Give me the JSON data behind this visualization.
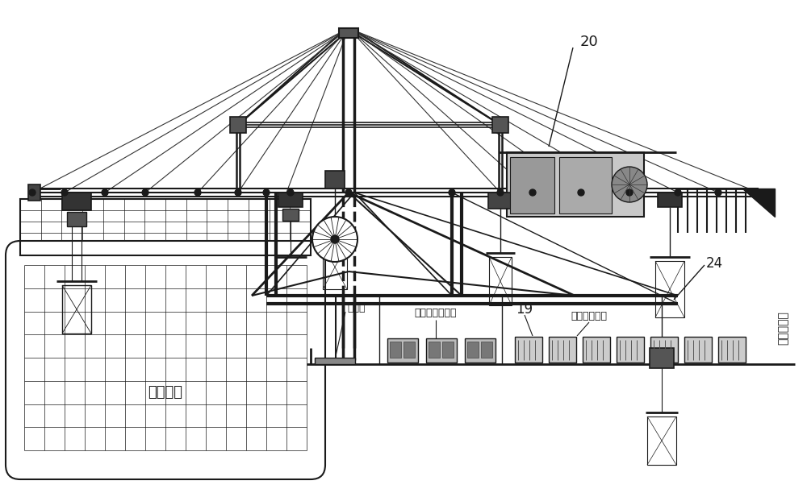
{
  "bg_color": "#ffffff",
  "lc": "#1a1a1a",
  "fig_width": 10.0,
  "fig_height": 6.07,
  "dpi": 100,
  "labels": {
    "label_20": "20",
    "label_19": "19",
    "label_24": "24",
    "label_hatch_cover": "舵盖板",
    "label_special_box": "特种筱运输通道",
    "label_loading_area": "装卸船作业区",
    "label_horizontal_transport": "水平运输区",
    "label_container_ship": "集装筱船"
  }
}
